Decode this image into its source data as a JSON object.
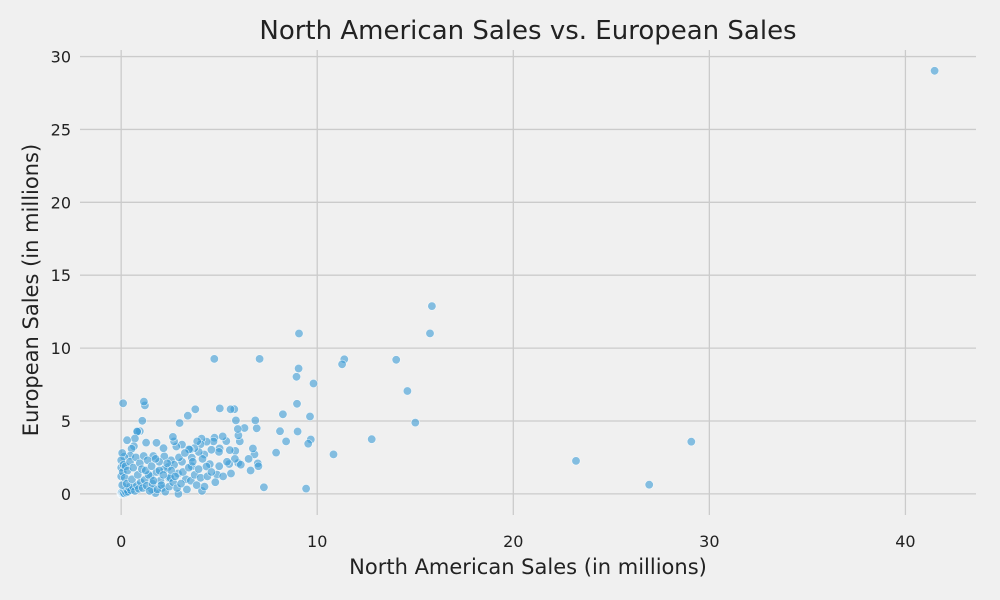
{
  "chart_data": {
    "type": "scatter",
    "title": "North American Sales vs. European Sales",
    "xlabel": "North American Sales (in millions)",
    "ylabel": "European Sales (in millions)",
    "xlim": [
      -2.1,
      43.6
    ],
    "ylim": [
      -1.45,
      30.45
    ],
    "xticks": [
      0,
      10,
      20,
      30,
      40
    ],
    "yticks": [
      0,
      5,
      10,
      15,
      20,
      25,
      30
    ],
    "grid": true,
    "point_color": "#008fd5",
    "background": "#f0f0f0",
    "series": [
      {
        "points": [
          [
            41.49,
            29.02
          ],
          [
            29.08,
            3.58
          ],
          [
            26.93,
            0.63
          ],
          [
            23.2,
            2.26
          ],
          [
            15.85,
            12.88
          ],
          [
            15.75,
            11.01
          ],
          [
            15.0,
            4.89
          ],
          [
            14.6,
            7.06
          ],
          [
            14.03,
            9.2
          ],
          [
            12.78,
            3.75
          ],
          [
            11.38,
            9.23
          ],
          [
            11.27,
            8.89
          ],
          [
            10.83,
            2.71
          ],
          [
            9.81,
            7.57
          ],
          [
            9.67,
            3.73
          ],
          [
            9.63,
            5.31
          ],
          [
            9.54,
            3.44
          ],
          [
            9.43,
            0.36
          ],
          [
            9.07,
            11.0
          ],
          [
            9.05,
            8.6
          ],
          [
            9.0,
            4.28
          ],
          [
            8.94,
            8.03
          ],
          [
            8.97,
            6.18
          ],
          [
            8.41,
            3.6
          ],
          [
            8.25,
            5.46
          ],
          [
            8.1,
            4.3
          ],
          [
            7.9,
            2.83
          ],
          [
            7.28,
            0.45
          ],
          [
            7.06,
            9.26
          ],
          [
            6.97,
            2.09
          ],
          [
            6.91,
            4.5
          ],
          [
            6.84,
            5.04
          ],
          [
            6.8,
            2.71
          ],
          [
            6.72,
            3.11
          ],
          [
            6.5,
            2.4
          ],
          [
            6.29,
            4.52
          ],
          [
            6.05,
            3.6
          ],
          [
            5.98,
            4.01
          ],
          [
            5.97,
            2.12
          ],
          [
            5.95,
            4.45
          ],
          [
            5.85,
            5.04
          ],
          [
            5.82,
            2.95
          ],
          [
            5.8,
            2.4
          ],
          [
            5.77,
            5.81
          ],
          [
            5.58,
            5.8
          ],
          [
            5.54,
            3.0
          ],
          [
            5.51,
            2.05
          ],
          [
            5.36,
            3.62
          ],
          [
            5.18,
            3.94
          ],
          [
            5.03,
            5.86
          ],
          [
            5.02,
            3.12
          ],
          [
            4.99,
            2.88
          ],
          [
            4.89,
            1.32
          ],
          [
            4.76,
            3.85
          ],
          [
            4.75,
            9.26
          ],
          [
            4.71,
            3.6
          ],
          [
            4.6,
            3.02
          ],
          [
            4.52,
            2.04
          ],
          [
            4.36,
            3.58
          ],
          [
            4.35,
            1.88
          ],
          [
            4.24,
            2.7
          ],
          [
            4.12,
            0.2
          ],
          [
            4.1,
            3.79
          ],
          [
            4.05,
            3.4
          ],
          [
            3.96,
            2.87
          ],
          [
            3.88,
            3.6
          ],
          [
            3.78,
            5.8
          ],
          [
            3.73,
            3.13
          ],
          [
            3.6,
            2.48
          ],
          [
            3.51,
            3.04
          ],
          [
            3.46,
            3.05
          ],
          [
            3.4,
            5.36
          ],
          [
            3.1,
            3.38
          ],
          [
            2.98,
            4.86
          ],
          [
            2.92,
            0.0
          ],
          [
            2.81,
            3.25
          ],
          [
            2.7,
            3.6
          ],
          [
            2.64,
            3.91
          ],
          [
            2.54,
            2.3
          ],
          [
            2.45,
            1.08
          ],
          [
            2.4,
            1.84
          ],
          [
            2.2,
            2.57
          ],
          [
            2.16,
            3.13
          ],
          [
            2.09,
            0.4
          ],
          [
            1.94,
            2.2
          ],
          [
            1.8,
            3.5
          ],
          [
            1.75,
            0.05
          ],
          [
            1.64,
            2.6
          ],
          [
            1.57,
            0.3
          ],
          [
            1.5,
            1.2
          ],
          [
            1.27,
            3.52
          ],
          [
            1.21,
            6.07
          ],
          [
            1.16,
            6.33
          ],
          [
            1.08,
            5.01
          ],
          [
            0.95,
            4.3
          ],
          [
            0.84,
            4.26
          ],
          [
            0.81,
            4.28
          ],
          [
            0.7,
            3.8
          ],
          [
            0.65,
            3.27
          ],
          [
            0.53,
            3.09
          ],
          [
            0.46,
            2.62
          ],
          [
            0.3,
            3.68
          ],
          [
            0.1,
            6.21
          ],
          [
            0.15,
            2.55
          ],
          [
            0.05,
            2.8
          ],
          [
            0.0,
            0.0
          ],
          [
            0.0,
            0.02
          ],
          [
            0.01,
            0.0
          ],
          [
            0.02,
            0.03
          ],
          [
            0.03,
            0.0
          ],
          [
            0.0,
            0.05
          ],
          [
            0.04,
            0.01
          ],
          [
            0.01,
            0.08
          ],
          [
            0.06,
            0.02
          ],
          [
            0.02,
            0.1
          ],
          [
            0.08,
            0.05
          ],
          [
            0.05,
            0.12
          ],
          [
            0.1,
            0.08
          ],
          [
            0.12,
            0.15
          ],
          [
            0.15,
            0.03
          ],
          [
            0.2,
            0.2
          ],
          [
            0.25,
            0.1
          ],
          [
            0.3,
            0.3
          ],
          [
            0.35,
            0.15
          ],
          [
            0.4,
            0.45
          ],
          [
            0.5,
            0.25
          ],
          [
            0.6,
            0.5
          ],
          [
            0.7,
            0.2
          ],
          [
            0.8,
            0.6
          ],
          [
            0.9,
            0.35
          ],
          [
            1.0,
            0.8
          ],
          [
            1.1,
            0.4
          ],
          [
            1.2,
            0.95
          ],
          [
            1.3,
            0.55
          ],
          [
            1.4,
            1.3
          ],
          [
            1.6,
            0.7
          ],
          [
            1.8,
            1.5
          ],
          [
            2.0,
            0.9
          ],
          [
            2.2,
            1.7
          ],
          [
            2.5,
            1.1
          ],
          [
            2.7,
            2.0
          ],
          [
            2.9,
            1.4
          ],
          [
            3.1,
            2.2
          ],
          [
            3.3,
            1.0
          ],
          [
            3.6,
            1.9
          ],
          [
            0.0,
            1.2
          ],
          [
            0.0,
            1.8
          ],
          [
            0.0,
            2.3
          ],
          [
            0.05,
            0.6
          ],
          [
            0.08,
            1.5
          ],
          [
            0.12,
            2.0
          ],
          [
            0.18,
            1.1
          ],
          [
            0.22,
            1.9
          ],
          [
            0.28,
            0.7
          ],
          [
            0.33,
            1.6
          ],
          [
            0.45,
            2.2
          ],
          [
            0.55,
            1.0
          ],
          [
            0.62,
            1.8
          ],
          [
            0.75,
            2.5
          ],
          [
            0.85,
            1.3
          ],
          [
            0.95,
            2.1
          ],
          [
            1.05,
            1.7
          ],
          [
            1.15,
            2.6
          ],
          [
            1.25,
            1.6
          ],
          [
            1.35,
            2.3
          ],
          [
            1.45,
            0.2
          ],
          [
            1.55,
            1.9
          ],
          [
            1.65,
            0.9
          ],
          [
            1.75,
            2.4
          ],
          [
            1.85,
            0.3
          ],
          [
            1.95,
            1.6
          ],
          [
            2.05,
            0.6
          ],
          [
            2.15,
            1.3
          ],
          [
            2.25,
            0.15
          ],
          [
            2.35,
            2.1
          ],
          [
            2.45,
            0.5
          ],
          [
            2.55,
            1.6
          ],
          [
            2.65,
            0.8
          ],
          [
            2.75,
            1.2
          ],
          [
            2.85,
            0.4
          ],
          [
            2.95,
            2.5
          ],
          [
            3.05,
            0.7
          ],
          [
            3.15,
            1.5
          ],
          [
            3.25,
            2.8
          ],
          [
            3.35,
            0.3
          ],
          [
            3.45,
            1.8
          ],
          [
            3.55,
            0.9
          ],
          [
            3.65,
            2.2
          ],
          [
            3.75,
            1.3
          ],
          [
            3.85,
            0.6
          ],
          [
            3.95,
            1.7
          ],
          [
            4.05,
            1.1
          ],
          [
            4.15,
            2.4
          ],
          [
            4.25,
            0.5
          ],
          [
            4.4,
            1.2
          ],
          [
            4.6,
            1.5
          ],
          [
            4.8,
            0.8
          ],
          [
            5.0,
            1.9
          ],
          [
            5.2,
            1.2
          ],
          [
            5.4,
            2.2
          ],
          [
            5.6,
            1.4
          ],
          [
            6.1,
            2.0
          ],
          [
            6.6,
            1.6
          ],
          [
            7.0,
            1.9
          ]
        ]
      }
    ]
  }
}
